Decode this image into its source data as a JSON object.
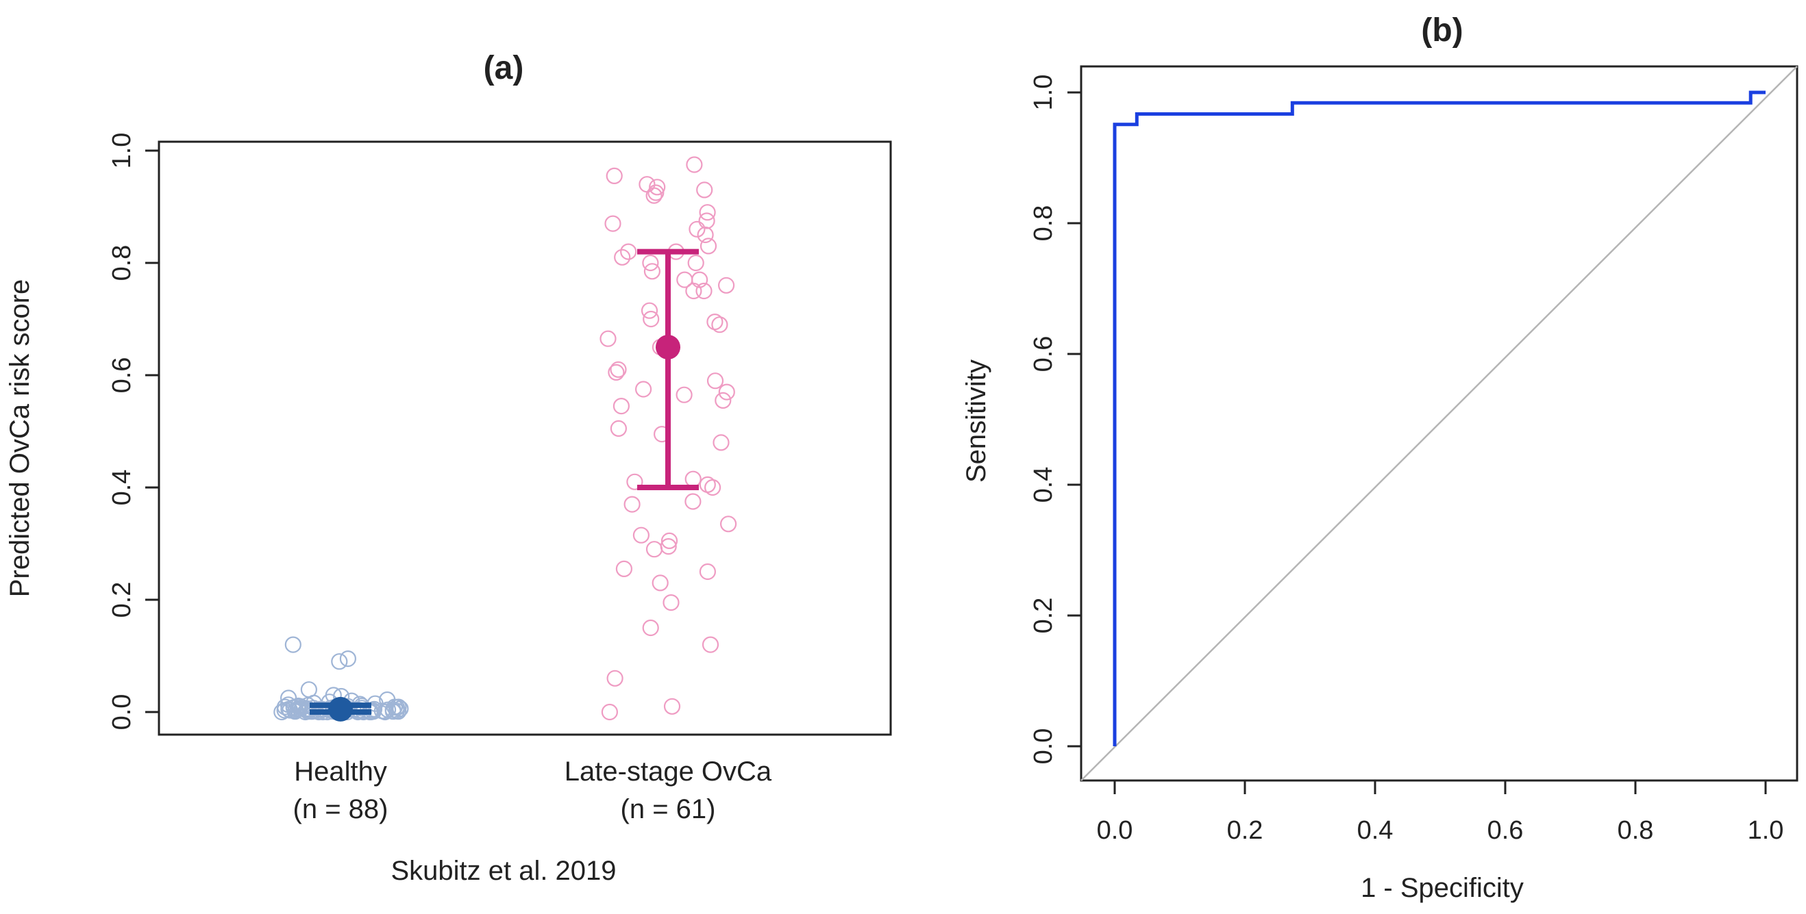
{
  "chart_data": [
    {
      "type": "scatter",
      "panel": "(a)",
      "title": "(a)",
      "xlabel": "Skubitz et al. 2019",
      "ylabel": "Predicted OvCa risk score",
      "ylim": [
        0,
        1
      ],
      "yticks": [
        "0.0",
        "0.2",
        "0.4",
        "0.6",
        "0.8",
        "1.0"
      ],
      "groups": [
        {
          "name": "Healthy",
          "count_label": "(n = 88)",
          "color": "#1f5aa0",
          "point_color": "#9fb5d6",
          "mean": 0.005,
          "error_low": 0.0,
          "error_high": 0.012,
          "points": [
            0.09,
            0.095,
            0.12,
            0.04,
            0.03,
            0.028,
            0.025,
            0.022,
            0.02,
            0.018,
            0.016,
            0.015,
            0.014,
            0.013,
            0.012,
            0.012,
            0.011,
            0.011,
            0.01,
            0.01,
            0.01,
            0.009,
            0.009,
            0.009,
            0.008,
            0.008,
            0.008,
            0.008,
            0.007,
            0.007,
            0.007,
            0.007,
            0.006,
            0.006,
            0.006,
            0.006,
            0.006,
            0.005,
            0.005,
            0.005,
            0.005,
            0.005,
            0.005,
            0.004,
            0.004,
            0.004,
            0.004,
            0.004,
            0.004,
            0.004,
            0.003,
            0.003,
            0.003,
            0.003,
            0.003,
            0.003,
            0.003,
            0.003,
            0.002,
            0.002,
            0.002,
            0.002,
            0.002,
            0.002,
            0.002,
            0.002,
            0.002,
            0.001,
            0.001,
            0.001,
            0.001,
            0.001,
            0.001,
            0.001,
            0.001,
            0.001,
            0.001,
            0.0,
            0.0,
            0.0,
            0.0,
            0.0,
            0.0,
            0.0,
            0.0,
            0.0,
            0.0,
            0.0
          ]
        },
        {
          "name": "Late-stage OvCa",
          "count_label": "(n = 61)",
          "color": "#c7237a",
          "point_color": "#ef9cc3",
          "mean": 0.65,
          "error_low": 0.4,
          "error_high": 0.82,
          "points": [
            0.975,
            0.955,
            0.94,
            0.935,
            0.925,
            0.93,
            0.92,
            0.89,
            0.875,
            0.87,
            0.86,
            0.85,
            0.83,
            0.82,
            0.82,
            0.81,
            0.8,
            0.8,
            0.785,
            0.77,
            0.77,
            0.76,
            0.75,
            0.75,
            0.715,
            0.7,
            0.695,
            0.69,
            0.665,
            0.65,
            0.61,
            0.605,
            0.59,
            0.575,
            0.57,
            0.565,
            0.555,
            0.545,
            0.505,
            0.495,
            0.48,
            0.415,
            0.41,
            0.405,
            0.4,
            0.375,
            0.37,
            0.335,
            0.315,
            0.305,
            0.295,
            0.29,
            0.255,
            0.25,
            0.23,
            0.195,
            0.15,
            0.12,
            0.06,
            0.01,
            0.0
          ]
        }
      ]
    },
    {
      "type": "line",
      "panel": "(b)",
      "title": "(b)",
      "xlabel": "1 - Specificity",
      "ylabel": "Sensitivity",
      "xlim": [
        0,
        1
      ],
      "ylim": [
        0,
        1
      ],
      "xticks": [
        "0.0",
        "0.2",
        "0.4",
        "0.6",
        "0.8",
        "1.0"
      ],
      "yticks": [
        "0.0",
        "0.2",
        "0.4",
        "0.6",
        "0.8",
        "1.0"
      ],
      "series": [
        {
          "name": "ROC",
          "color": "#1a3fe0",
          "x": [
            0.0,
            0.0,
            0.034,
            0.034,
            0.273,
            0.273,
            0.977,
            0.977,
            1.0
          ],
          "y": [
            0.0,
            0.951,
            0.951,
            0.967,
            0.967,
            0.984,
            0.984,
            1.0,
            1.0
          ]
        },
        {
          "name": "Reference",
          "color": "#b5b5b5",
          "x": [
            0,
            1
          ],
          "y": [
            0,
            1
          ]
        }
      ]
    }
  ]
}
